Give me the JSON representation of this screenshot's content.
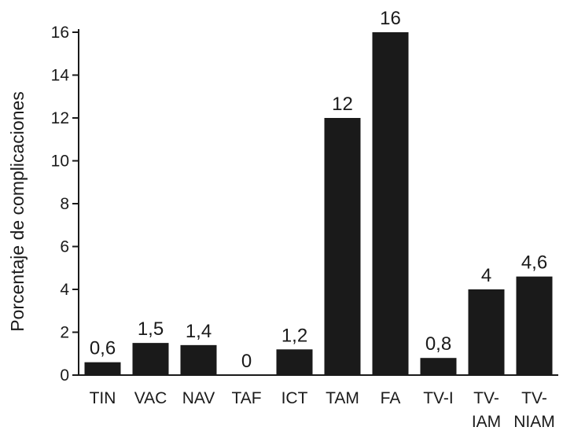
{
  "chart_data": {
    "type": "bar",
    "categories": [
      [
        "TIN"
      ],
      [
        "VAC"
      ],
      [
        "NAV"
      ],
      [
        "TAF"
      ],
      [
        "ICT"
      ],
      [
        "TAM"
      ],
      [
        "FA"
      ],
      [
        "TV-I"
      ],
      [
        "TV-",
        "IAM"
      ],
      [
        "TV-",
        "NIAM"
      ]
    ],
    "values": [
      0.6,
      1.5,
      1.4,
      0,
      1.2,
      12,
      16,
      0.8,
      4,
      4.6
    ],
    "value_labels": [
      "0,6",
      "1,5",
      "1,4",
      "0",
      "1,2",
      "12",
      "16",
      "0,8",
      "4",
      "4,6"
    ],
    "ylabel": "Porcentaje de complicaciones",
    "xlabel": "",
    "ylim": [
      0,
      16
    ],
    "yticks": [
      0,
      2,
      4,
      6,
      8,
      10,
      12,
      14,
      16
    ],
    "grid": false,
    "bar_color": "#1a1a1a"
  }
}
